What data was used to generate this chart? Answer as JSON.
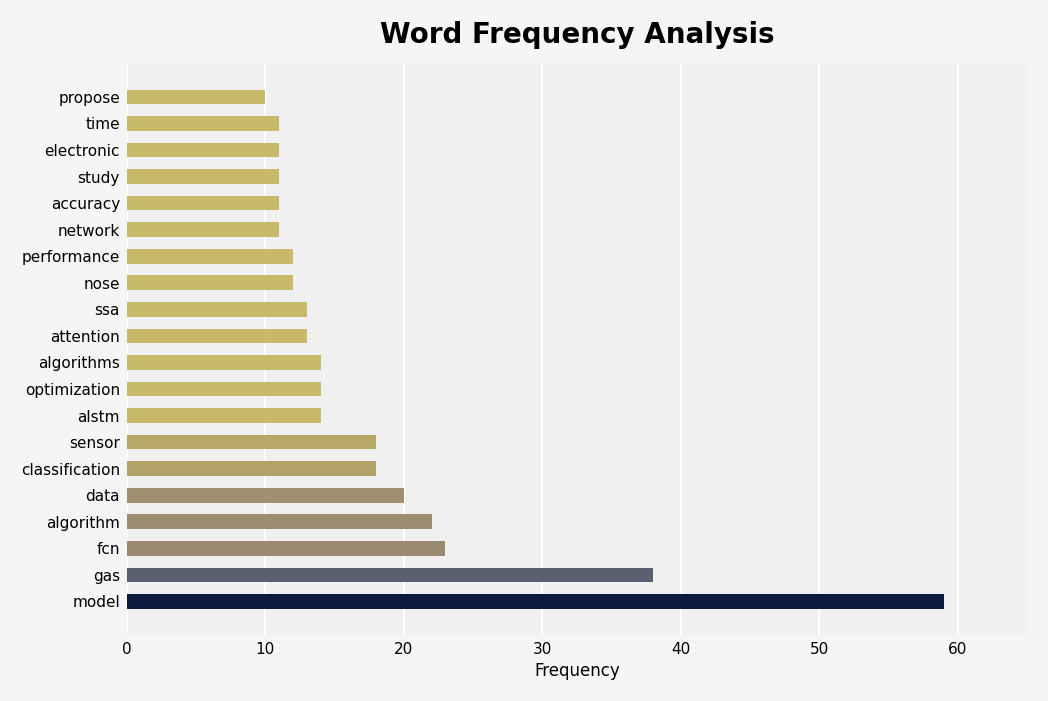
{
  "title": "Word Frequency Analysis",
  "xlabel": "Frequency",
  "categories": [
    "propose",
    "time",
    "electronic",
    "study",
    "accuracy",
    "network",
    "performance",
    "nose",
    "ssa",
    "attention",
    "algorithms",
    "optimization",
    "alstm",
    "sensor",
    "classification",
    "data",
    "algorithm",
    "fcn",
    "gas",
    "model"
  ],
  "values": [
    10,
    11,
    11,
    11,
    11,
    11,
    12,
    12,
    13,
    13,
    14,
    14,
    14,
    18,
    18,
    20,
    22,
    23,
    38,
    59
  ],
  "bar_colors": [
    "#c9b96a",
    "#c9b96a",
    "#c9b96a",
    "#c9b96a",
    "#c9b96a",
    "#c9b96a",
    "#c9b96a",
    "#c9b96a",
    "#c9b96a",
    "#c9b96a",
    "#c9b96a",
    "#c9b96a",
    "#c9b96a",
    "#b8a868",
    "#b0a268",
    "#a09070",
    "#9c8c72",
    "#9a8870",
    "#5a6070",
    "#0d1b3e"
  ],
  "background_color": "#f5f5f5",
  "plot_background": "#f0f0f0",
  "title_fontsize": 20,
  "label_fontsize": 12,
  "tick_fontsize": 11,
  "xlim": [
    0,
    65
  ],
  "xticks": [
    0,
    10,
    20,
    30,
    40,
    50,
    60
  ],
  "bar_height": 0.55
}
